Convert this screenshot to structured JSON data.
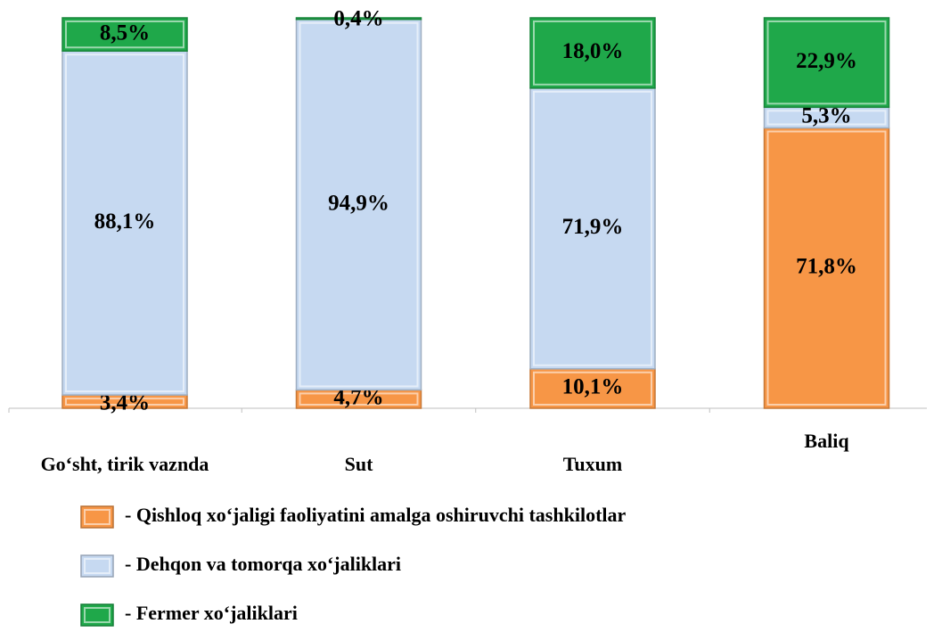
{
  "chart_data": {
    "type": "stacked_bar",
    "categories": [
      "Go‘sht, tirik vaznda",
      "Sut",
      "Tuxum",
      "Baliq"
    ],
    "ylim": [
      0,
      100
    ],
    "series": [
      {
        "name": "- Qishloq xo‘jaligi faoliyatini amalga oshiruvchi tashkilotlar",
        "color": "#f79646",
        "values": [
          3.4,
          4.7,
          10.1,
          71.8
        ],
        "value_labels": [
          "3,4%",
          "4,7%",
          "10,1%",
          "71,8%"
        ]
      },
      {
        "name": "- Dehqon va tomorqa xo‘jaliklari",
        "color": "#c6d9f1",
        "values": [
          88.1,
          94.9,
          71.9,
          5.3
        ],
        "value_labels": [
          "88,1%",
          "94,9%",
          "71,9%",
          "5,3%"
        ]
      },
      {
        "name": "- Fermer xo‘jaliklari",
        "color": "#1fa84a",
        "values": [
          8.5,
          0.4,
          18.0,
          22.9
        ],
        "value_labels": [
          "8,5%",
          "0,4%",
          "18,0%",
          "22,9%"
        ]
      }
    ]
  }
}
